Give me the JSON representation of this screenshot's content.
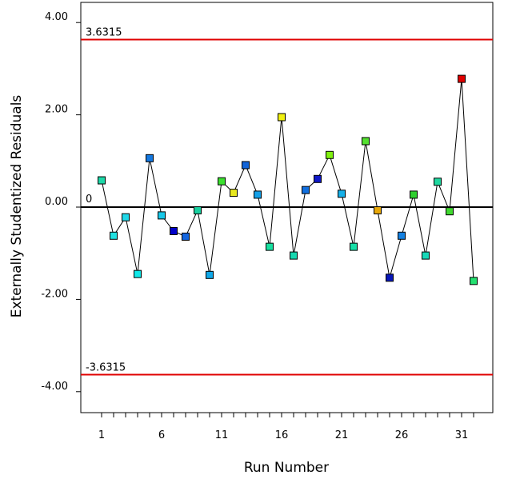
{
  "chart_data": {
    "type": "scatter",
    "title": "",
    "xlabel": "Run Number",
    "ylabel": "Externally Studentized Residuals",
    "xlim": [
      0,
      33
    ],
    "ylim": [
      -4.5,
      4.3
    ],
    "yticks": [
      -4,
      -2,
      0,
      2,
      4
    ],
    "ytick_labels": [
      "-4.00",
      "-2.00",
      "0.00",
      "2.00",
      "4.00"
    ],
    "xticks_labeled": [
      1,
      6,
      11,
      16,
      21,
      26,
      31
    ],
    "xtick_labels": [
      "1",
      "6",
      "11",
      "16",
      "21",
      "26",
      "31"
    ],
    "xticks_minor_range": [
      1,
      32
    ],
    "limits": [
      {
        "name": "upper",
        "value": 3.6315,
        "label": "3.6315",
        "color": "#e00000"
      },
      {
        "name": "lower",
        "value": -3.6315,
        "label": "-3.6315",
        "color": "#e00000"
      }
    ],
    "zero_line": {
      "value": 0,
      "label": "0",
      "color": "#000000"
    },
    "series": [
      {
        "name": "residuals",
        "x": [
          1,
          2,
          3,
          4,
          5,
          6,
          7,
          8,
          9,
          10,
          11,
          12,
          13,
          14,
          15,
          16,
          17,
          18,
          19,
          20,
          21,
          22,
          23,
          24,
          25,
          26,
          27,
          28,
          29,
          30,
          31,
          32
        ],
        "y": [
          0.58,
          -0.62,
          -0.22,
          -1.45,
          1.06,
          -0.18,
          -0.52,
          -0.64,
          -0.07,
          -1.47,
          0.56,
          0.31,
          0.91,
          0.27,
          -0.86,
          1.95,
          -1.05,
          0.37,
          0.61,
          1.13,
          0.29,
          -0.86,
          1.43,
          -0.07,
          -1.53,
          -0.62,
          0.27,
          -1.05,
          0.55,
          -0.09,
          2.78,
          -1.6
        ],
        "colors": [
          "#1ed8a8",
          "#22e0e0",
          "#22d8e8",
          "#10e8e8",
          "#1478e0",
          "#18c8e8",
          "#0000c8",
          "#1466e0",
          "#18d0a0",
          "#10a8e8",
          "#3ce030",
          "#e8e820",
          "#1264d8",
          "#14a0e8",
          "#18e0a0",
          "#f0f010",
          "#18d8b0",
          "#1270e0",
          "#1018c8",
          "#80f010",
          "#16b0e8",
          "#18e0a8",
          "#54e030",
          "#e8a808",
          "#0818b8",
          "#1480e0",
          "#30d030",
          "#18d8b8",
          "#20d8a0",
          "#40d830",
          "#e00000",
          "#24e070"
        ]
      }
    ]
  }
}
